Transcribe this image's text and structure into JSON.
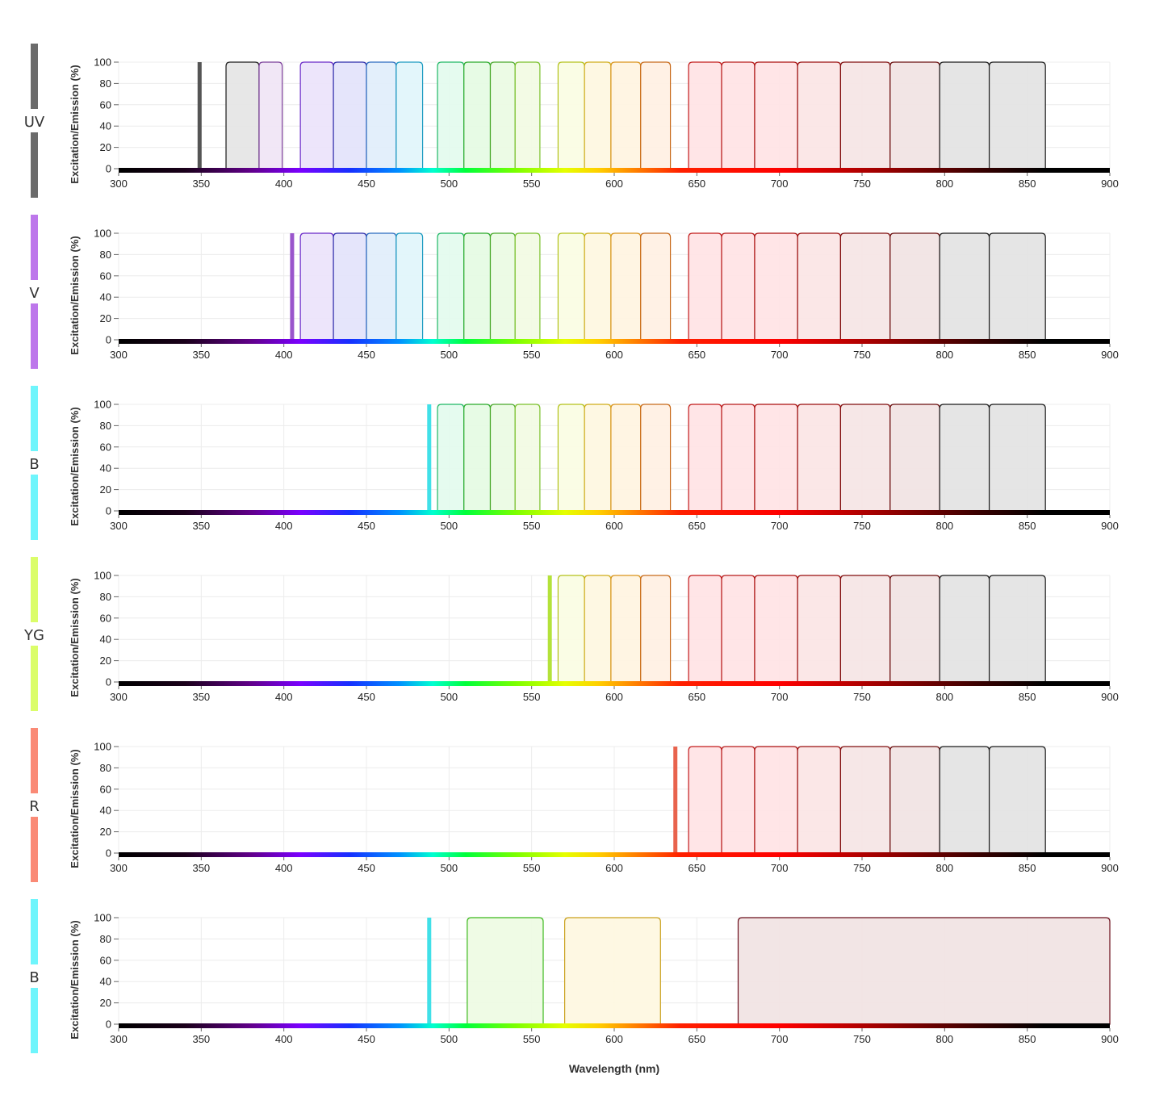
{
  "chart_data": {
    "type": "area",
    "xlabel": "Wavelength (nm)",
    "ylabel": "Excitation/Emission (%)",
    "xlim": [
      300,
      900
    ],
    "ylim": [
      0,
      100
    ],
    "x_ticks": [
      "300",
      "350",
      "400",
      "450",
      "500",
      "550",
      "600",
      "650",
      "700",
      "750",
      "800",
      "850",
      "900"
    ],
    "y_ticks": [
      "0",
      "20",
      "40",
      "60",
      "80",
      "100"
    ],
    "grid": true,
    "colorbar_stops": [
      {
        "nm": 300,
        "color": "#000000"
      },
      {
        "nm": 340,
        "color": "#1a001a"
      },
      {
        "nm": 380,
        "color": "#61008a"
      },
      {
        "nm": 410,
        "color": "#7a00ff"
      },
      {
        "nm": 440,
        "color": "#1630ff"
      },
      {
        "nm": 470,
        "color": "#0091ff"
      },
      {
        "nm": 490,
        "color": "#00ffd0"
      },
      {
        "nm": 510,
        "color": "#00ff3a"
      },
      {
        "nm": 540,
        "color": "#7aff00"
      },
      {
        "nm": 570,
        "color": "#e5ff00"
      },
      {
        "nm": 590,
        "color": "#ffd000"
      },
      {
        "nm": 610,
        "color": "#ff8a00"
      },
      {
        "nm": 640,
        "color": "#ff2000"
      },
      {
        "nm": 700,
        "color": "#ff0000"
      },
      {
        "nm": 760,
        "color": "#a00000"
      },
      {
        "nm": 820,
        "color": "#3a0000"
      },
      {
        "nm": 860,
        "color": "#000000"
      },
      {
        "nm": 900,
        "color": "#000000"
      }
    ],
    "filter_sets": {
      "standard_uv": [
        {
          "start": 365,
          "end": 385,
          "color": "#1a1a1a",
          "fill": "#e6e6e6"
        },
        {
          "start": 385,
          "end": 399,
          "color": "#7a3d99",
          "fill": "#f0e6f5"
        },
        {
          "start": 410,
          "end": 430,
          "color": "#6a28c8",
          "fill": "#ece4fb"
        },
        {
          "start": 430,
          "end": 450,
          "color": "#2a2aaa",
          "fill": "#e4e4fb"
        },
        {
          "start": 450,
          "end": 468,
          "color": "#2a6abf",
          "fill": "#e2eefb"
        },
        {
          "start": 468,
          "end": 484,
          "color": "#1a9ac0",
          "fill": "#e2f6fb"
        },
        {
          "start": 493,
          "end": 509,
          "color": "#1fb865",
          "fill": "#e4fbee"
        },
        {
          "start": 509,
          "end": 525,
          "color": "#2aaa2a",
          "fill": "#e6fbe4"
        },
        {
          "start": 525,
          "end": 540,
          "color": "#49a82a",
          "fill": "#ebfbe4"
        },
        {
          "start": 540,
          "end": 555,
          "color": "#7ac02a",
          "fill": "#f2fbe4"
        },
        {
          "start": 566,
          "end": 582,
          "color": "#b3c21a",
          "fill": "#fafde4"
        },
        {
          "start": 582,
          "end": 598,
          "color": "#d0ad1a",
          "fill": "#fef8e2"
        },
        {
          "start": 598,
          "end": 616,
          "color": "#d9931a",
          "fill": "#fff4e2"
        },
        {
          "start": 616,
          "end": 634,
          "color": "#c86a1a",
          "fill": "#fff0e4"
        },
        {
          "start": 645,
          "end": 665,
          "color": "#c21a1a",
          "fill": "#ffe4e6"
        },
        {
          "start": 665,
          "end": 685,
          "color": "#b71a1a",
          "fill": "#ffe4e6"
        },
        {
          "start": 685,
          "end": 711,
          "color": "#aa0d0d",
          "fill": "#ffe4e6"
        },
        {
          "start": 711,
          "end": 737,
          "color": "#990d0d",
          "fill": "#fbe6e6"
        },
        {
          "start": 737,
          "end": 767,
          "color": "#800d0d",
          "fill": "#f6e6e6"
        },
        {
          "start": 767,
          "end": 797,
          "color": "#6a0d0d",
          "fill": "#f1e4e4"
        },
        {
          "start": 797,
          "end": 827,
          "color": "#1a1a1a",
          "fill": "#e4e4e4"
        },
        {
          "start": 827,
          "end": 861,
          "color": "#1a1a1a",
          "fill": "#e4e4e4"
        }
      ],
      "broad_b": [
        {
          "start": 511,
          "end": 557,
          "color": "#3ab81a",
          "fill": "#eefbe4"
        },
        {
          "start": 570,
          "end": 628,
          "color": "#c9a01a",
          "fill": "#fef8e2"
        },
        {
          "start": 675,
          "end": 900,
          "color": "#6a0d1a",
          "fill": "#f1e4e4"
        }
      ]
    },
    "panels": [
      {
        "laser": "UV",
        "laser_nm": 349,
        "laser_color": "#666666",
        "filter_set": "standard_uv",
        "min_start": 0
      },
      {
        "laser": "V",
        "laser_nm": 405,
        "laser_color": "#b86fe6",
        "filter_set": "standard_uv",
        "min_start": 405
      },
      {
        "laser": "B",
        "laser_nm": 488,
        "laser_color": "#5ef2f7",
        "filter_set": "standard_uv",
        "min_start": 488
      },
      {
        "laser": "YG",
        "laser_nm": 561,
        "laser_color": "#c6ef3f",
        "filter_set": "standard_uv",
        "min_start": 561
      },
      {
        "laser": "R",
        "laser_nm": 637,
        "laser_color": "#f27361",
        "filter_set": "standard_uv",
        "min_start": 637
      },
      {
        "laser": "B",
        "laser_nm": 488,
        "laser_color": "#5ef2f7",
        "filter_set": "broad_b",
        "min_start": 0
      }
    ]
  },
  "bar_colors": {
    "UV": "#6b6b6b",
    "V": "#bd77eb",
    "B": "#6ff5fc",
    "YG": "#dbfd6a",
    "R": "#fa8a76",
    "B2": "#6ff5fc"
  },
  "laser_lines_colors": {
    "UV": "#555555",
    "V": "#9a55cc",
    "B": "#40e0e8",
    "YG": "#b4e23a",
    "R": "#e8634d",
    "B2": "#40e0e8"
  }
}
